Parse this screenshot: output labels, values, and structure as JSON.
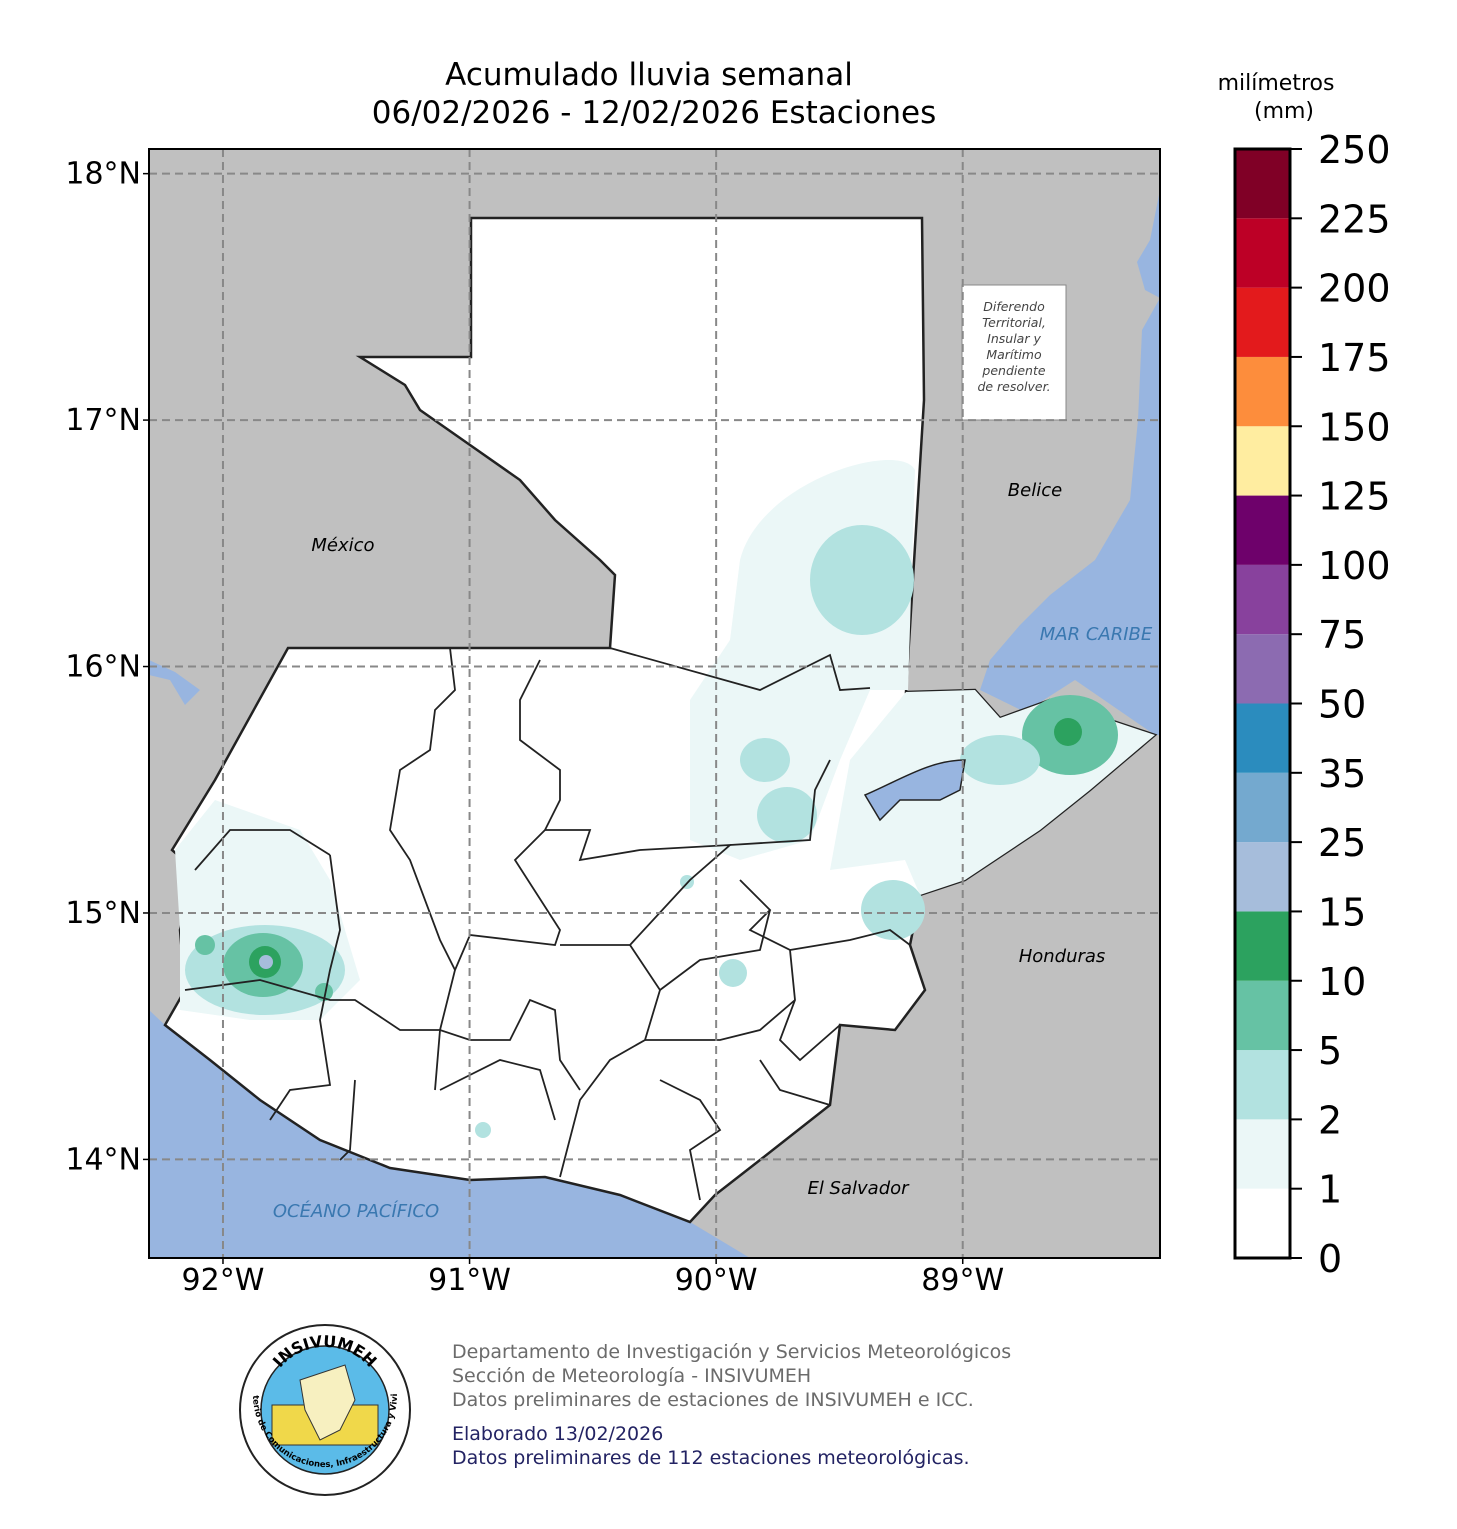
{
  "title": "Acumulado lluvia semanal",
  "subtitle": "06/02/2026 - 12/02/2026  Estaciones",
  "map": {
    "xlim": [
      -92.3,
      -88.2
    ],
    "ylim": [
      13.6,
      18.1
    ],
    "lat_ticks": [
      {
        "value": 18,
        "label": "18°N"
      },
      {
        "value": 17,
        "label": "17°N"
      },
      {
        "value": 16,
        "label": "16°N"
      },
      {
        "value": 15,
        "label": "15°N"
      },
      {
        "value": 14,
        "label": "14°N"
      }
    ],
    "lon_ticks": [
      {
        "value": -92,
        "label": "92°W"
      },
      {
        "value": -91,
        "label": "91°W"
      },
      {
        "value": -90,
        "label": "90°W"
      },
      {
        "value": -89,
        "label": "89°W"
      }
    ],
    "grid": true,
    "labels": {
      "mexico": "México",
      "belice": "Belice",
      "honduras": "Honduras",
      "el_salvador": "El Salvador",
      "caribe": "MAR CARIBE",
      "pacifico": "OCÉANO PACÍFICO"
    },
    "dispute_note": [
      "Diferendo",
      "Territorial,",
      "Insular y",
      "Marítimo",
      "pendiente",
      "de resolver."
    ]
  },
  "colorbar": {
    "title": [
      "milímetros",
      "(mm)"
    ],
    "ticks": [
      0,
      1,
      2,
      5,
      10,
      15,
      25,
      35,
      50,
      75,
      100,
      125,
      150,
      175,
      200,
      225,
      250
    ],
    "colors": [
      "#ffffff",
      "#ebf7f7",
      "#b2e2e0",
      "#66c2a4",
      "#2ca25f",
      "#a6bddb",
      "#74a9cf",
      "#2b8cbe",
      "#8c6bb1",
      "#88419d",
      "#6e016b",
      "#ffeda0",
      "#fd8d3c",
      "#e31a1c",
      "#bd0026",
      "#800026"
    ]
  },
  "footer": {
    "info": [
      "Departamento de Investigación y Servicios Meteorológicos",
      "Sección de Meteorología - INSIVUMEH",
      "Datos preliminares de estaciones de INSIVUMEH e ICC."
    ],
    "notes": [
      "Elaborado 13/02/2026",
      "Datos preliminares de 112 estaciones meteorológicas."
    ]
  },
  "logo": {
    "name": "INSIVUMEH",
    "ring": "Ministerio de Comunicaciones, Infraestructura y Vivienda"
  }
}
